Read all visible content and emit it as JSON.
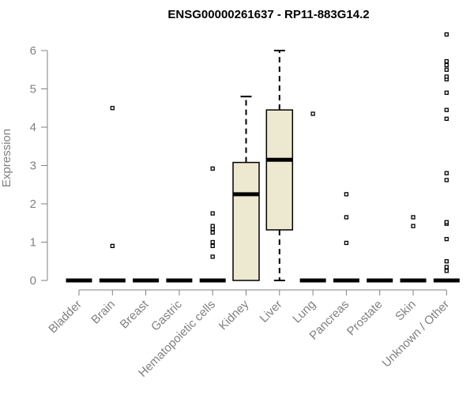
{
  "chart_data": {
    "type": "boxplot",
    "title": "ENSG00000261637 - RP11-883G14.2",
    "xlabel": "",
    "ylabel": "Expression",
    "ylim": [
      0,
      6.5
    ],
    "yticks": [
      0,
      1,
      2,
      3,
      4,
      5,
      6
    ],
    "colors": {
      "box_fill": "#EDE8D0",
      "stroke": "#000000",
      "axis": "#808080"
    },
    "categories": [
      "Bladder",
      "Brain",
      "Breast",
      "Gastric",
      "Hematopoietic cells",
      "Kidney",
      "Liver",
      "Lung",
      "Pancreas",
      "Prostate",
      "Skin",
      "Unknown / Other"
    ],
    "boxes": [
      {
        "category": "Bladder",
        "min": 0,
        "q1": 0,
        "median": 0,
        "q3": 0,
        "max": 0,
        "outliers": []
      },
      {
        "category": "Brain",
        "min": 0,
        "q1": 0,
        "median": 0,
        "q3": 0,
        "max": 0,
        "outliers": [
          0.9,
          4.5
        ]
      },
      {
        "category": "Breast",
        "min": 0,
        "q1": 0,
        "median": 0,
        "q3": 0,
        "max": 0,
        "outliers": []
      },
      {
        "category": "Gastric",
        "min": 0,
        "q1": 0,
        "median": 0,
        "q3": 0,
        "max": 0,
        "outliers": []
      },
      {
        "category": "Hematopoietic cells",
        "min": 0,
        "q1": 0,
        "median": 0,
        "q3": 0,
        "max": 0,
        "outliers": [
          0.62,
          0.9,
          1.0,
          1.25,
          1.35,
          1.42,
          1.75,
          2.92
        ]
      },
      {
        "category": "Kidney",
        "min": 0,
        "q1": 0,
        "median": 2.25,
        "q3": 3.08,
        "max": 4.8,
        "outliers": []
      },
      {
        "category": "Liver",
        "min": 0,
        "q1": 1.32,
        "median": 3.15,
        "q3": 4.45,
        "max": 6.0,
        "outliers": []
      },
      {
        "category": "Lung",
        "min": 0,
        "q1": 0,
        "median": 0,
        "q3": 0,
        "max": 0,
        "outliers": [
          4.35
        ]
      },
      {
        "category": "Pancreas",
        "min": 0,
        "q1": 0,
        "median": 0,
        "q3": 0,
        "max": 0,
        "outliers": [
          0.98,
          1.65,
          2.25
        ]
      },
      {
        "category": "Prostate",
        "min": 0,
        "q1": 0,
        "median": 0,
        "q3": 0,
        "max": 0,
        "outliers": []
      },
      {
        "category": "Skin",
        "min": 0,
        "q1": 0,
        "median": 0,
        "q3": 0,
        "max": 0,
        "outliers": [
          1.42,
          1.65
        ]
      },
      {
        "category": "Unknown / Other",
        "min": 0,
        "q1": 0,
        "median": 0,
        "q3": 0,
        "max": 0,
        "outliers": [
          0.25,
          0.35,
          0.5,
          1.08,
          1.48,
          1.52,
          2.62,
          2.8,
          4.22,
          4.45,
          4.9,
          5.25,
          5.32,
          5.5,
          5.62,
          5.72,
          6.42
        ]
      }
    ]
  }
}
